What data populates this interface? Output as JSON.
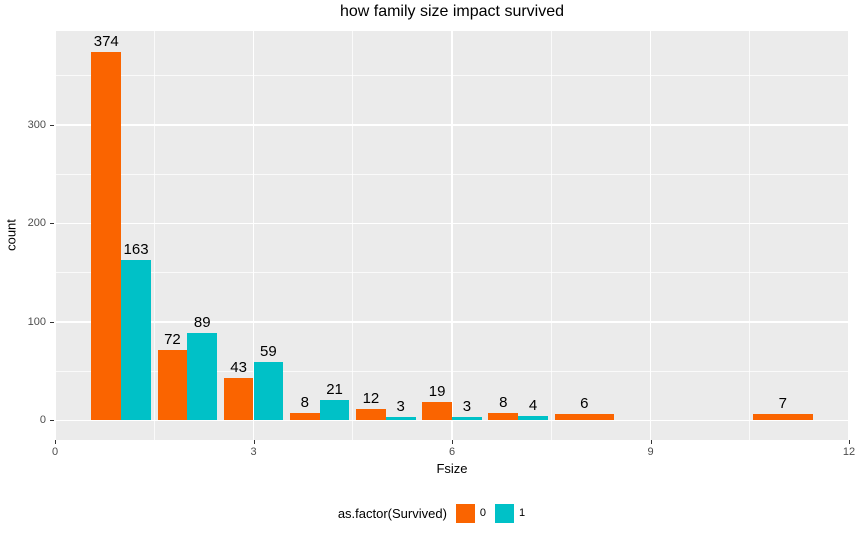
{
  "chart_data": {
    "type": "bar",
    "title": "how family size impact survived",
    "xlabel": "Fsize",
    "ylabel": "count",
    "legend_title": "as.factor(Survived)",
    "legend_position": "bottom",
    "categories": [
      1,
      2,
      3,
      4,
      5,
      6,
      7,
      8,
      11
    ],
    "series": [
      {
        "name": "0",
        "color": "#FA6400",
        "values": [
          374,
          72,
          43,
          8,
          12,
          19,
          8,
          6,
          7
        ]
      },
      {
        "name": "1",
        "color": "#00C1C7",
        "values": [
          163,
          89,
          59,
          21,
          3,
          3,
          4,
          null,
          null
        ]
      }
    ],
    "bar_labels": true,
    "dodge_width": 0.9,
    "xlim": [
      0,
      12
    ],
    "ylim": [
      -19.9,
      395.5
    ],
    "x_ticks": [
      0,
      3,
      6,
      9,
      12
    ],
    "x_minor": [
      1.5,
      4.5,
      7.5,
      10.5
    ],
    "y_ticks": [
      0,
      100,
      200,
      300
    ],
    "y_minor": [
      50,
      150,
      250,
      350
    ],
    "grid": true,
    "panel_bg": "#EBEBEB",
    "grid_color": "#FFFFFF",
    "tick_color": "#333333",
    "tick_label_color": "#4D4D4D",
    "bar_label_color": "#000000"
  }
}
